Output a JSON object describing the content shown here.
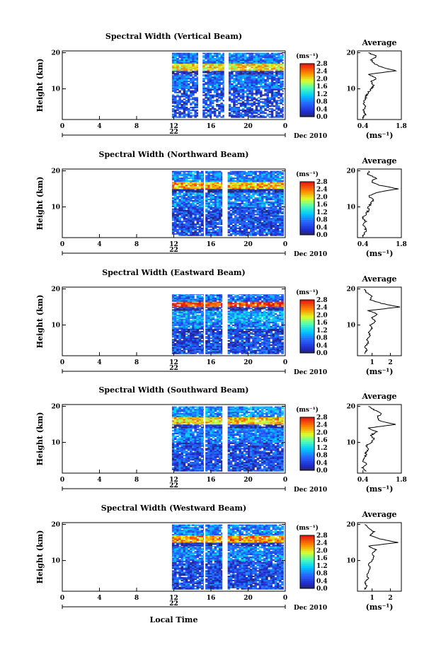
{
  "figure": {
    "xlabel": "Local Time",
    "time_ticks": [
      "0",
      "4",
      "8",
      "12",
      "16",
      "20",
      "0"
    ],
    "day_label": "22",
    "month_label": "Dec 2010",
    "colorbar_unit": "(ms⁻¹)",
    "colorbar_ticks": [
      "0.0",
      "0.4",
      "0.8",
      "1.2",
      "1.6",
      "2.0",
      "2.4",
      "2.8"
    ],
    "height_ticks": [
      "20",
      "10"
    ],
    "ylabel": "Height (km)",
    "avg_title": "Average",
    "avg_unit": "(ms⁻¹)"
  },
  "chart_data": [
    {
      "type": "heatmap",
      "title": "Spectral Width (Vertical Beam)",
      "xlabel": "",
      "ylabel": "Height (km)",
      "xlim": [
        0,
        24
      ],
      "ylim": [
        1.5,
        20.5
      ],
      "data_time_ranges": [
        [
          11.8,
          14.6
        ],
        [
          15.1,
          17.4
        ],
        [
          17.9,
          23.8
        ]
      ],
      "colorbar": {
        "label": "(ms⁻¹)",
        "range": [
          0.0,
          2.8
        ]
      },
      "layers": [
        {
          "h": [
            2,
            10
          ],
          "v": 0.5,
          "gappy": true
        },
        {
          "h": [
            10,
            14
          ],
          "v": 0.7
        },
        {
          "h": [
            14,
            15
          ],
          "v": 0.3
        },
        {
          "h": [
            15,
            17
          ],
          "v": 2.0
        },
        {
          "h": [
            17,
            20
          ],
          "v": 0.8
        }
      ],
      "average": {
        "xlim": [
          0.2,
          1.8
        ],
        "xticks": [
          "0.4",
          "1.8"
        ],
        "profile": [
          [
            2,
            0.4
          ],
          [
            3,
            0.5
          ],
          [
            4,
            0.4
          ],
          [
            5,
            0.5
          ],
          [
            6,
            0.4
          ],
          [
            7,
            0.5
          ],
          [
            8,
            0.5
          ],
          [
            9,
            0.6
          ],
          [
            10,
            0.7
          ],
          [
            11,
            0.8
          ],
          [
            12,
            0.7
          ],
          [
            13,
            0.9
          ],
          [
            14,
            0.6
          ],
          [
            15,
            1.6
          ],
          [
            16,
            1.1
          ],
          [
            17,
            0.8
          ],
          [
            18,
            0.7
          ],
          [
            19,
            0.9
          ],
          [
            20,
            0.6
          ]
        ]
      }
    },
    {
      "type": "heatmap",
      "title": "Spectral Width (Northward Beam)",
      "xlabel": "",
      "ylabel": "Height (km)",
      "xlim": [
        0,
        24
      ],
      "ylim": [
        1.5,
        20.5
      ],
      "data_time_ranges": [
        [
          11.8,
          15.2
        ],
        [
          15.4,
          17.2
        ],
        [
          17.8,
          23.8
        ]
      ],
      "colorbar": {
        "label": "(ms⁻¹)",
        "range": [
          0.0,
          2.8
        ]
      },
      "layers": [
        {
          "h": [
            2,
            10
          ],
          "v": 0.5
        },
        {
          "h": [
            10,
            14
          ],
          "v": 0.8
        },
        {
          "h": [
            14,
            15
          ],
          "v": 0.2
        },
        {
          "h": [
            15,
            17
          ],
          "v": 2.2
        },
        {
          "h": [
            17,
            20
          ],
          "v": 0.8
        }
      ],
      "average": {
        "xlim": [
          0.2,
          1.8
        ],
        "xticks": [
          "0.4",
          "1.8"
        ],
        "profile": [
          [
            2,
            0.4
          ],
          [
            3,
            0.5
          ],
          [
            4,
            0.5
          ],
          [
            5,
            0.4
          ],
          [
            6,
            0.5
          ],
          [
            7,
            0.4
          ],
          [
            8,
            0.5
          ],
          [
            9,
            0.6
          ],
          [
            10,
            0.6
          ],
          [
            11,
            0.7
          ],
          [
            12,
            0.8
          ],
          [
            13,
            0.6
          ],
          [
            14,
            0.9
          ],
          [
            15,
            1.7
          ],
          [
            16,
            1.0
          ],
          [
            17,
            0.7
          ],
          [
            18,
            0.9
          ],
          [
            19,
            0.6
          ],
          [
            20,
            0.6
          ]
        ]
      }
    },
    {
      "type": "heatmap",
      "title": "Spectral Width (Eastward Beam)",
      "xlabel": "",
      "ylabel": "Height (km)",
      "xlim": [
        0,
        24
      ],
      "ylim": [
        1.5,
        20.5
      ],
      "data_time_ranges": [
        [
          11.8,
          15.2
        ],
        [
          15.4,
          17.2
        ],
        [
          17.8,
          23.8
        ]
      ],
      "colorbar": {
        "label": "(ms⁻¹)",
        "range": [
          0.0,
          2.8
        ]
      },
      "layers": [
        {
          "h": [
            2,
            8
          ],
          "v": 0.5
        },
        {
          "h": [
            8,
            9
          ],
          "v": 0.3
        },
        {
          "h": [
            9,
            11
          ],
          "v": 0.8
        },
        {
          "h": [
            11,
            14
          ],
          "v": 1.0
        },
        {
          "h": [
            14,
            15
          ],
          "v": 0.3
        },
        {
          "h": [
            15,
            16.5
          ],
          "v": 2.6
        },
        {
          "h": [
            16.5,
            18.5
          ],
          "v": 0.7
        }
      ],
      "average": {
        "xlim": [
          0.2,
          2.6
        ],
        "xticks": [
          "1",
          "2"
        ],
        "profile": [
          [
            2,
            0.6
          ],
          [
            3,
            0.7
          ],
          [
            4,
            0.6
          ],
          [
            5,
            0.8
          ],
          [
            6,
            0.7
          ],
          [
            7,
            0.9
          ],
          [
            8,
            0.8
          ],
          [
            9,
            1.0
          ],
          [
            10,
            0.9
          ],
          [
            11,
            1.2
          ],
          [
            12,
            1.0
          ],
          [
            13,
            1.3
          ],
          [
            14,
            0.8
          ],
          [
            15,
            2.5
          ],
          [
            16,
            1.5
          ],
          [
            17,
            0.9
          ],
          [
            18,
            1.0
          ],
          [
            19,
            0.7
          ],
          [
            20,
            0.6
          ]
        ]
      }
    },
    {
      "type": "heatmap",
      "title": "Spectral Width (Southward Beam)",
      "xlabel": "",
      "ylabel": "Height (km)",
      "xlim": [
        0,
        24
      ],
      "ylim": [
        1.5,
        20.5
      ],
      "data_time_ranges": [
        [
          11.8,
          15.2
        ],
        [
          15.4,
          17.2
        ],
        [
          17.8,
          23.8
        ]
      ],
      "colorbar": {
        "label": "(ms⁻¹)",
        "range": [
          0.0,
          2.8
        ]
      },
      "layers": [
        {
          "h": [
            2,
            10
          ],
          "v": 0.5
        },
        {
          "h": [
            10,
            14
          ],
          "v": 0.8
        },
        {
          "h": [
            14,
            15
          ],
          "v": 0.3
        },
        {
          "h": [
            15,
            17
          ],
          "v": 2.1
        },
        {
          "h": [
            17,
            20
          ],
          "v": 0.9
        }
      ],
      "average": {
        "xlim": [
          0.2,
          1.8
        ],
        "xticks": [
          "0.4",
          "1.8"
        ],
        "profile": [
          [
            2,
            0.5
          ],
          [
            3,
            0.4
          ],
          [
            4,
            0.5
          ],
          [
            5,
            0.4
          ],
          [
            6,
            0.5
          ],
          [
            7,
            0.5
          ],
          [
            8,
            0.6
          ],
          [
            9,
            0.5
          ],
          [
            10,
            0.7
          ],
          [
            11,
            0.8
          ],
          [
            12,
            0.7
          ],
          [
            13,
            0.9
          ],
          [
            14,
            0.6
          ],
          [
            15,
            1.6
          ],
          [
            16,
            1.0
          ],
          [
            17,
            0.9
          ],
          [
            18,
            1.1
          ],
          [
            19,
            0.8
          ],
          [
            20,
            0.6
          ]
        ]
      }
    },
    {
      "type": "heatmap",
      "title": "Spectral Width (Westward Beam)",
      "xlabel": "Local Time",
      "ylabel": "Height (km)",
      "xlim": [
        0,
        24
      ],
      "ylim": [
        1.5,
        20.5
      ],
      "data_time_ranges": [
        [
          11.8,
          15.2
        ],
        [
          15.4,
          17.2
        ],
        [
          17.8,
          23.8
        ]
      ],
      "colorbar": {
        "label": "(ms⁻¹)",
        "range": [
          0.0,
          2.8
        ]
      },
      "layers": [
        {
          "h": [
            2,
            10
          ],
          "v": 0.5
        },
        {
          "h": [
            10,
            14
          ],
          "v": 0.8
        },
        {
          "h": [
            14,
            15
          ],
          "v": 0.3
        },
        {
          "h": [
            15,
            17
          ],
          "v": 2.3
        },
        {
          "h": [
            17,
            20
          ],
          "v": 0.8
        }
      ],
      "average": {
        "xlim": [
          0.2,
          2.6
        ],
        "xticks": [
          "1",
          "2"
        ],
        "profile": [
          [
            2,
            0.6
          ],
          [
            3,
            0.7
          ],
          [
            4,
            0.6
          ],
          [
            5,
            0.8
          ],
          [
            6,
            0.7
          ],
          [
            7,
            0.8
          ],
          [
            8,
            0.9
          ],
          [
            9,
            0.8
          ],
          [
            10,
            1.0
          ],
          [
            11,
            1.1
          ],
          [
            12,
            1.0
          ],
          [
            13,
            1.2
          ],
          [
            14,
            0.8
          ],
          [
            15,
            2.4
          ],
          [
            16,
            1.4
          ],
          [
            17,
            0.9
          ],
          [
            18,
            1.1
          ],
          [
            19,
            0.8
          ],
          [
            20,
            0.6
          ]
        ]
      }
    }
  ]
}
